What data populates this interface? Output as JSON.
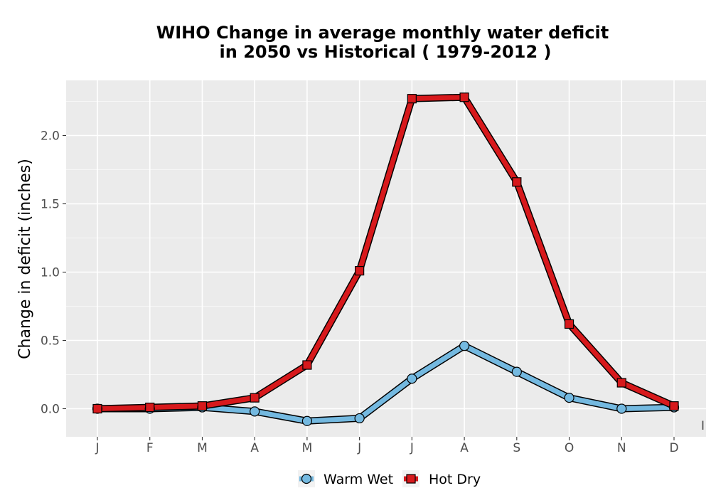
{
  "chart_data": {
    "type": "line",
    "title_line1": "WIHO  Change in average monthly water deficit",
    "title_line2": "in 2050 vs Historical ( 1979-2012 )",
    "xlabel": "",
    "ylabel": "Change in deficit (inches)",
    "categories": [
      "J",
      "F",
      "M",
      "A",
      "M",
      "J",
      "J",
      "A",
      "S",
      "O",
      "N",
      "D"
    ],
    "ylim": [
      -0.2,
      2.4
    ],
    "yticks": [
      0.0,
      0.5,
      1.0,
      1.5,
      2.0
    ],
    "ytick_labels": [
      "0.0",
      "0.5",
      "1.0",
      "1.5",
      "2.0"
    ],
    "grid": true,
    "legend_position": "bottom",
    "edge_label": "I",
    "series": [
      {
        "name": "Warm Wet",
        "color": "#74b9e0",
        "marker": "circle",
        "values": [
          0.0,
          0.0,
          0.01,
          -0.02,
          -0.09,
          -0.07,
          0.22,
          0.46,
          0.27,
          0.08,
          0.0,
          0.01
        ]
      },
      {
        "name": "Hot Dry",
        "color": "#d7191c",
        "marker": "square",
        "values": [
          0.0,
          0.01,
          0.02,
          0.08,
          0.32,
          1.01,
          2.27,
          2.28,
          1.66,
          0.62,
          0.19,
          0.02
        ]
      }
    ]
  }
}
